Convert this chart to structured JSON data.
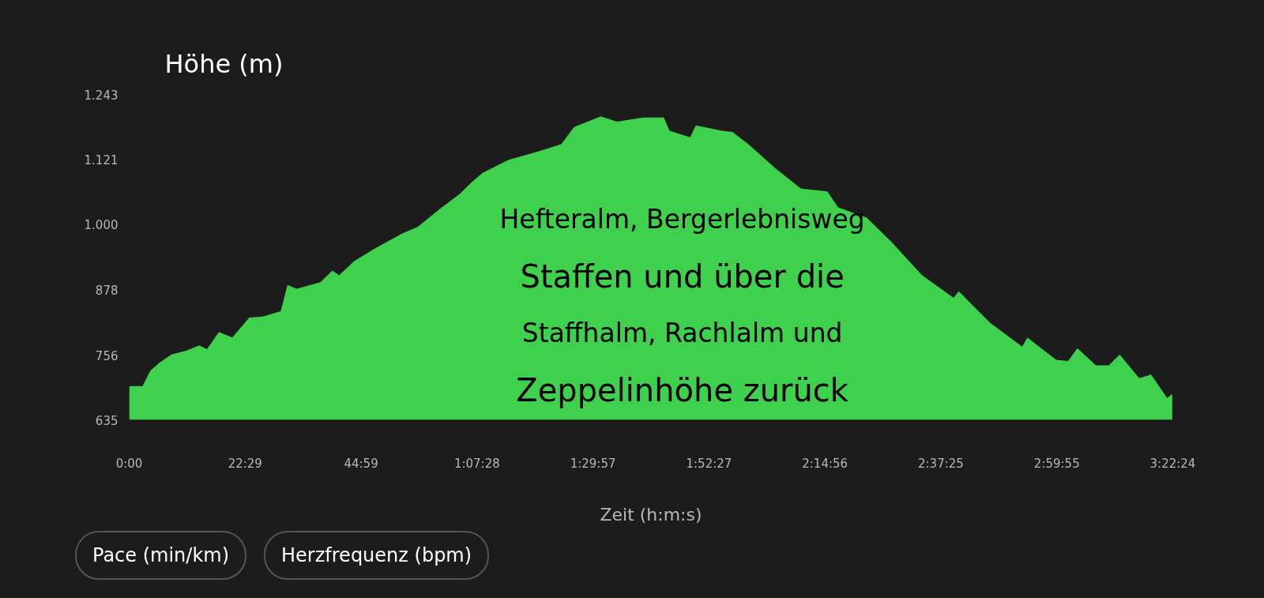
{
  "chart_data": {
    "type": "area",
    "title": "Höhe (m)",
    "xlabel": "Zeit (h:m:s)",
    "x": [
      0,
      2.6,
      4.1,
      5.9,
      8.2,
      11,
      13.6,
      15.1,
      17.4,
      20,
      23.3,
      25.9,
      29.4,
      30.7,
      32.5,
      37.1,
      39.4,
      40.7,
      43.7,
      47.8,
      52.9,
      56,
      60.1,
      64.1,
      66.2,
      68.5,
      73.6,
      79.2,
      83.8,
      86.3,
      91.5,
      94.6,
      99.7,
      103.7,
      104.8,
      108.8,
      109.9,
      115,
      117,
      120.1,
      125.2,
      130.3,
      135.4,
      137.5,
      141.5,
      143,
      147.7,
      153.8,
      159.9,
      160.9,
      167,
      173.2,
      174.2,
      179.8,
      182.1,
      183.9,
      187.5,
      190,
      192.1,
      195.9,
      198.2,
      201.3,
      202.3
    ],
    "values": [
      698,
      698,
      727,
      742,
      757,
      764,
      774,
      767,
      799,
      789,
      826,
      828,
      838,
      887,
      880,
      892,
      914,
      905,
      932,
      956,
      983,
      996,
      1028,
      1057,
      1077,
      1096,
      1121,
      1136,
      1150,
      1182,
      1202,
      1192,
      1200,
      1200,
      1175,
      1163,
      1185,
      1175,
      1173,
      1150,
      1106,
      1067,
      1062,
      1032,
      1018,
      1013,
      969,
      905,
      863,
      875,
      816,
      772,
      789,
      747,
      745,
      769,
      737,
      737,
      757,
      713,
      720,
      676,
      683
    ],
    "color": "#3fd04e",
    "xlim": [
      0,
      202.4
    ],
    "xticks": [
      {
        "value": 0,
        "label": "0:00"
      },
      {
        "value": 22.4833,
        "label": "22:29"
      },
      {
        "value": 44.9833,
        "label": "44:59"
      },
      {
        "value": 67.4667,
        "label": "1:07:28"
      },
      {
        "value": 89.95,
        "label": "1:29:57"
      },
      {
        "value": 112.45,
        "label": "1:52:27"
      },
      {
        "value": 134.9333,
        "label": "2:14:56"
      },
      {
        "value": 157.4167,
        "label": "2:37:25"
      },
      {
        "value": 179.9167,
        "label": "2:59:55"
      },
      {
        "value": 202.4,
        "label": "3:22:24"
      }
    ],
    "ylim": [
      635,
      1243
    ],
    "yticks": [
      635,
      756,
      878,
      {
        "value": 1000,
        "label": "1.000"
      },
      {
        "value": 1121,
        "label": "1.121"
      },
      {
        "value": 1243,
        "label": "1.243"
      }
    ],
    "annotations": [
      "Hefteralm, Bergerlebnisweg",
      "Staffen und über die",
      "Staffhalm, Rachlalm und",
      "Zeppelinhöhe zurück",
      "Pace (min/km)",
      "Herzfrequenz (bpm)"
    ],
    "grid": false
  }
}
